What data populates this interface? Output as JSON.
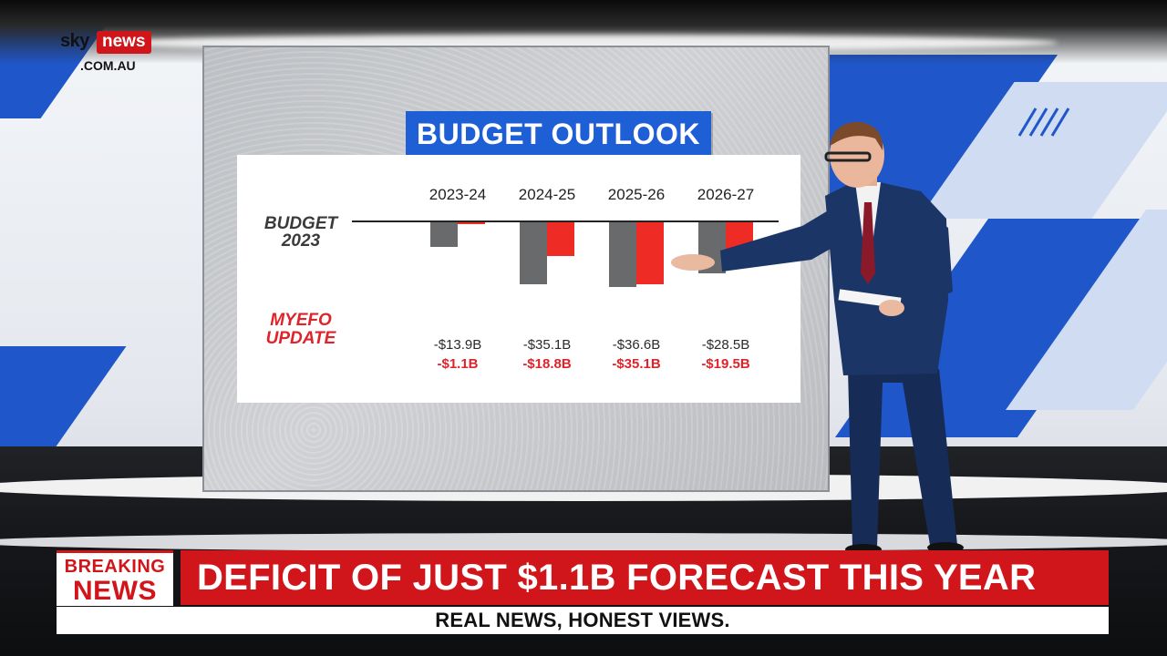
{
  "brand": {
    "logo_sky": "sky",
    "logo_news": "news",
    "logo_domain": ".COM.AU",
    "accent": "#d0161b"
  },
  "board": {
    "title": "BUDGET OUTLOOK",
    "title_color": "#1f5fd6"
  },
  "chart_data": {
    "type": "bar",
    "title": "BUDGET OUTLOOK",
    "categories": [
      "2023-24",
      "2024-25",
      "2025-26",
      "2026-27"
    ],
    "row_labels": {
      "budget_line1": "BUDGET",
      "budget_line2": "2023",
      "myefo_line1": "MYEFO",
      "myefo_line2": "UPDATE"
    },
    "series": [
      {
        "name": "BUDGET 2023",
        "values": [
          -13.9,
          -35.1,
          -36.6,
          -28.5
        ],
        "labels": [
          "-$13.9B",
          "-$35.1B",
          "-$36.6B",
          "-$28.5B"
        ],
        "color": "#696a6c"
      },
      {
        "name": "MYEFO UPDATE",
        "values": [
          -1.1,
          -18.8,
          -35.1,
          -19.5
        ],
        "labels": [
          "-$1.1B",
          "-$18.8B",
          "-$35.1B",
          "-$19.5B"
        ],
        "color": "#ef2b25"
      }
    ],
    "units": "$B",
    "grid": false,
    "legend": "left"
  },
  "lower_third": {
    "breaking_line1": "BREAKING",
    "breaking_line2": "NEWS",
    "headline": "DEFICIT OF JUST $1.1B FORECAST THIS YEAR",
    "strap": "REAL NEWS, HONEST VIEWS."
  }
}
